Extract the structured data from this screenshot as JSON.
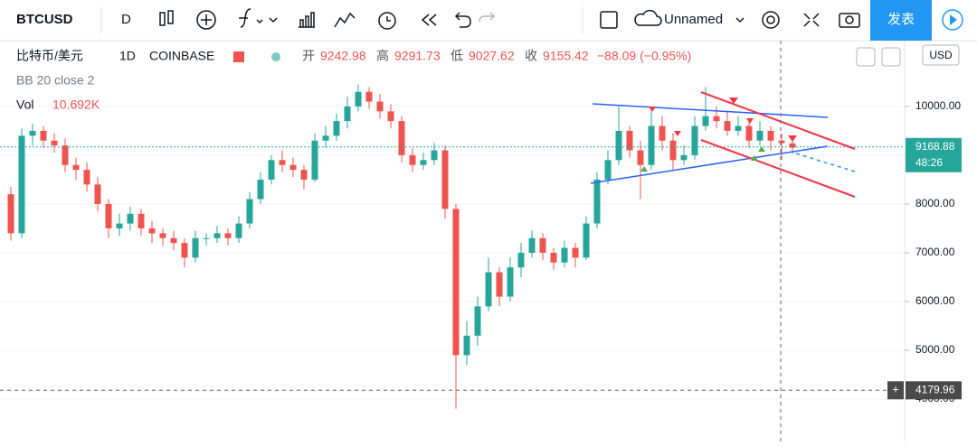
{
  "toolbar": {
    "symbol": "BTCUSD",
    "interval": "D",
    "layout": "Unnamed",
    "publish": "发表"
  },
  "legend": {
    "name": "比特币/美元",
    "interval": "1D",
    "exchange": "COINBASE",
    "open_label": "开",
    "open": "9242.98",
    "high_label": "高",
    "high": "9291.73",
    "low_label": "低",
    "low": "9027.62",
    "close_label": "收",
    "close": "9155.42",
    "change": "−88.09 (−0.95%)",
    "indicator": "BB 20 close 2",
    "vol_label": "Vol",
    "vol": "10.692K",
    "currency": "USD"
  },
  "chart_data": {
    "type": "candlestick",
    "up_color": "#26a69a",
    "down_color": "#ef5350",
    "ylim": [
      3130,
      11350
    ],
    "yticks": [
      {
        "value": 4000,
        "label": "4000.00"
      },
      {
        "value": 5000,
        "label": "5000.00"
      },
      {
        "value": 6000,
        "label": "6000.00"
      },
      {
        "value": 7000,
        "label": "7000.00"
      },
      {
        "value": 8000,
        "label": "8000.00"
      },
      {
        "value": 9000,
        "label": "9000.00"
      },
      {
        "value": 10000,
        "label": "10000.00"
      }
    ],
    "last_price": 9168.88,
    "countdown": "48:26",
    "crosshair_price": 4179.96,
    "open": [
      8200,
      7400,
      9400,
      9500,
      9300,
      9200,
      8800,
      8700,
      8400,
      8000,
      7500,
      7600,
      7800,
      7500,
      7400,
      7300,
      7200,
      6900,
      7300,
      7300,
      7400,
      7300,
      7600,
      8100,
      8500,
      8900,
      8800,
      8700,
      8500,
      9300,
      9400,
      9700,
      10000,
      10300,
      10100,
      9900,
      9700,
      9000,
      8800,
      8900,
      9100,
      7900,
      4900,
      5300,
      5900,
      6600,
      6100,
      6700,
      7000,
      7300,
      7000,
      6800,
      7100,
      6900,
      7600,
      8500,
      8900,
      9500,
      9100,
      8800,
      9600,
      9300,
      8900,
      9000,
      9600,
      9800,
      9700,
      9500,
      9600,
      9300,
      9500,
      9300,
      9242.98
    ],
    "high": [
      8350,
      9550,
      9650,
      9600,
      9450,
      9350,
      8950,
      8850,
      8550,
      8100,
      7800,
      7950,
      7900,
      7650,
      7500,
      7450,
      7300,
      7450,
      7400,
      7550,
      7500,
      7750,
      8250,
      8650,
      9000,
      9100,
      8950,
      8800,
      9450,
      9600,
      9850,
      10200,
      10450,
      10400,
      10250,
      10050,
      9800,
      9150,
      9050,
      9250,
      9200,
      8000,
      5600,
      6100,
      6900,
      6700,
      6900,
      7200,
      7450,
      7400,
      7100,
      7250,
      7200,
      7750,
      8650,
      9100,
      10000,
      9600,
      9300,
      9900,
      9800,
      9450,
      9200,
      9800,
      10400,
      10000,
      9900,
      9800,
      9700,
      9700,
      9600,
      9450,
      9291.73
    ],
    "low": [
      7250,
      7300,
      9200,
      9150,
      9050,
      8650,
      8500,
      8250,
      7850,
      7300,
      7350,
      7450,
      7350,
      7200,
      7150,
      7050,
      6700,
      6800,
      7150,
      7200,
      7150,
      7200,
      7500,
      8000,
      8400,
      8650,
      8550,
      8300,
      8450,
      9150,
      9300,
      9550,
      9900,
      9950,
      9750,
      9550,
      8850,
      8650,
      8700,
      8800,
      7700,
      3800,
      4700,
      5100,
      5800,
      5900,
      6000,
      6500,
      6900,
      6850,
      6650,
      6700,
      6700,
      6850,
      7500,
      8400,
      8800,
      8950,
      8100,
      8700,
      9100,
      8700,
      8800,
      8900,
      9500,
      9550,
      9400,
      9400,
      9150,
      9200,
      9100,
      8900,
      9027.62
    ],
    "close": [
      7400,
      9400,
      9500,
      9300,
      9200,
      8800,
      8700,
      8400,
      8000,
      7500,
      7600,
      7800,
      7500,
      7400,
      7300,
      7200,
      6900,
      7300,
      7300,
      7400,
      7300,
      7600,
      8100,
      8500,
      8900,
      8800,
      8700,
      8500,
      9300,
      9400,
      9700,
      10000,
      10300,
      10100,
      9900,
      9700,
      9000,
      8800,
      8900,
      9100,
      7900,
      4900,
      5300,
      5900,
      6600,
      6100,
      6700,
      7000,
      7300,
      7000,
      6800,
      7100,
      6900,
      7600,
      8500,
      8900,
      9500,
      9100,
      8800,
      9600,
      9300,
      8900,
      9000,
      9600,
      9800,
      9700,
      9500,
      9600,
      9300,
      9500,
      9300,
      9250,
      9155.42
    ]
  }
}
